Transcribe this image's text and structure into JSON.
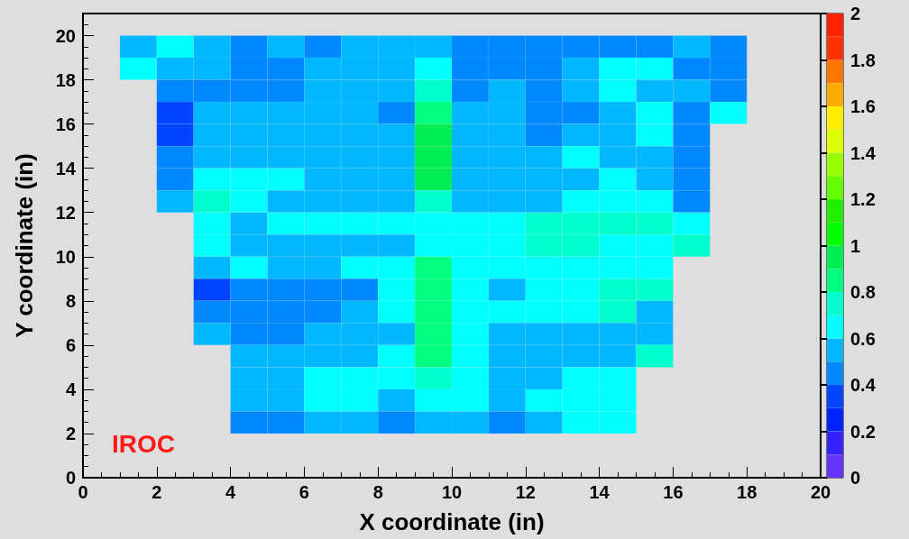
{
  "chart_data": {
    "type": "heatmap",
    "xlabel": "X coordinate (in)",
    "ylabel": "Y coordinate (in)",
    "annotations": [
      "IROC"
    ],
    "x": [
      1.5,
      2.5,
      3.5,
      4.5,
      5.5,
      6.5,
      7.5,
      8.5,
      9.5,
      10.5,
      11.5,
      12.5,
      13.5,
      14.5,
      15.5,
      16.5,
      17.5
    ],
    "y": [
      19.5,
      18.5,
      17.5,
      16.5,
      15.5,
      14.5,
      13.5,
      12.5,
      11.5,
      10.5,
      9.5,
      8.5,
      7.5,
      6.5,
      5.5,
      4.5,
      3.5,
      2.5
    ],
    "xlim": [
      0,
      20
    ],
    "xticks": [
      0,
      2,
      4,
      6,
      8,
      10,
      12,
      14,
      16,
      18,
      20
    ],
    "ylim": [
      0,
      21
    ],
    "yticks": [
      0,
      2,
      4,
      6,
      8,
      10,
      12,
      14,
      16,
      18,
      20
    ],
    "clim": [
      0,
      2
    ],
    "cticks": [
      0,
      0.2,
      0.4,
      0.6,
      0.8,
      1,
      1.2,
      1.4,
      1.6,
      1.8,
      2
    ],
    "cells": [
      [
        0.55,
        0.65,
        0.55,
        0.45,
        0.55,
        0.45,
        0.55,
        0.55,
        0.55,
        0.45,
        0.45,
        0.45,
        0.45,
        0.45,
        0.45,
        0.55,
        0.45
      ],
      [
        0.65,
        0.55,
        0.55,
        0.45,
        0.45,
        0.55,
        0.55,
        0.55,
        0.65,
        0.45,
        0.45,
        0.45,
        0.55,
        0.65,
        0.65,
        0.45,
        0.45
      ],
      [
        null,
        0.45,
        0.45,
        0.45,
        0.45,
        0.55,
        0.55,
        0.55,
        0.75,
        0.45,
        0.55,
        0.45,
        0.55,
        0.65,
        0.55,
        0.55,
        0.45
      ],
      [
        null,
        0.35,
        0.55,
        0.55,
        0.55,
        0.55,
        0.55,
        0.45,
        0.85,
        0.55,
        0.55,
        0.45,
        0.45,
        0.55,
        0.65,
        0.45,
        0.65
      ],
      [
        null,
        0.35,
        0.55,
        0.55,
        0.55,
        0.55,
        0.55,
        0.55,
        0.95,
        0.55,
        0.55,
        0.45,
        0.55,
        0.55,
        0.65,
        0.45,
        null
      ],
      [
        null,
        0.45,
        0.55,
        0.55,
        0.55,
        0.55,
        0.55,
        0.55,
        0.95,
        0.55,
        0.55,
        0.55,
        0.65,
        0.55,
        0.55,
        0.45,
        null
      ],
      [
        null,
        0.45,
        0.65,
        0.65,
        0.65,
        0.55,
        0.55,
        0.55,
        0.95,
        0.55,
        0.55,
        0.55,
        0.55,
        0.65,
        0.55,
        0.45,
        null
      ],
      [
        null,
        0.55,
        0.75,
        0.65,
        0.55,
        0.55,
        0.55,
        0.55,
        0.75,
        0.55,
        0.55,
        0.55,
        0.65,
        0.65,
        0.65,
        0.45,
        null
      ],
      [
        null,
        null,
        0.65,
        0.55,
        0.65,
        0.65,
        0.65,
        0.65,
        0.65,
        0.65,
        0.65,
        0.75,
        0.75,
        0.75,
        0.75,
        0.65,
        null
      ],
      [
        null,
        null,
        0.65,
        0.55,
        0.55,
        0.55,
        0.55,
        0.55,
        0.65,
        0.65,
        0.65,
        0.75,
        0.75,
        0.65,
        0.65,
        0.75,
        null
      ],
      [
        null,
        null,
        0.55,
        0.65,
        0.55,
        0.55,
        0.65,
        0.65,
        0.85,
        0.65,
        0.65,
        0.65,
        0.65,
        0.65,
        0.65,
        null,
        null
      ],
      [
        null,
        null,
        0.35,
        0.45,
        0.45,
        0.45,
        0.45,
        0.65,
        0.85,
        0.65,
        0.55,
        0.65,
        0.65,
        0.75,
        0.75,
        null,
        null
      ],
      [
        null,
        null,
        0.45,
        0.45,
        0.45,
        0.45,
        0.55,
        0.65,
        0.85,
        0.65,
        0.65,
        0.65,
        0.65,
        0.75,
        0.55,
        null,
        null
      ],
      [
        null,
        null,
        0.55,
        0.45,
        0.45,
        0.55,
        0.55,
        0.55,
        0.85,
        0.65,
        0.55,
        0.55,
        0.55,
        0.55,
        0.55,
        null,
        null
      ],
      [
        null,
        null,
        null,
        0.55,
        0.55,
        0.55,
        0.55,
        0.65,
        0.85,
        0.65,
        0.55,
        0.55,
        0.55,
        0.55,
        0.75,
        null,
        null
      ],
      [
        null,
        null,
        null,
        0.55,
        0.55,
        0.65,
        0.65,
        0.65,
        0.75,
        0.65,
        0.55,
        0.55,
        0.65,
        0.65,
        null,
        null,
        null
      ],
      [
        null,
        null,
        null,
        0.55,
        0.55,
        0.65,
        0.65,
        0.55,
        0.65,
        0.65,
        0.55,
        0.65,
        0.65,
        0.65,
        null,
        null,
        null
      ],
      [
        null,
        null,
        null,
        0.45,
        0.45,
        0.55,
        0.55,
        0.45,
        0.55,
        0.55,
        0.45,
        0.55,
        0.65,
        0.65,
        null,
        null,
        null
      ]
    ]
  }
}
